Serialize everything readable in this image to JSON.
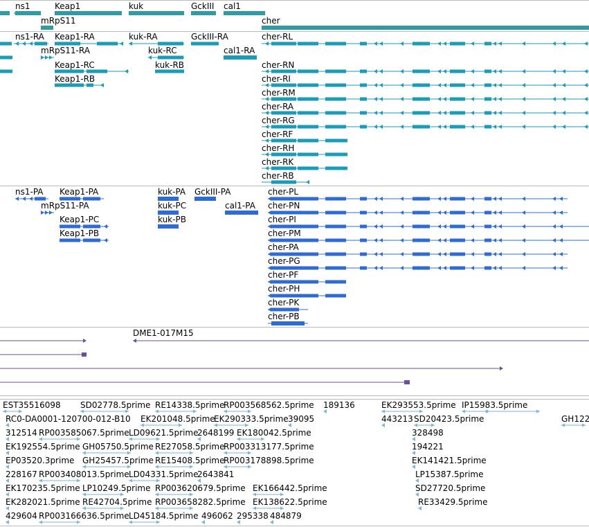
{
  "colors": {
    "gene": "#319ba3",
    "transcript": "#1a9bb8",
    "protein": "#2f6bd0",
    "clone": "#6a4fa0",
    "est": "#7ab6dc",
    "separator": "#bbbbbb"
  },
  "tracks": {
    "genes": {
      "labels": [
        "ns1",
        "Keap1",
        "kuk",
        "GckIII",
        "cal1",
        "mRpS11",
        "cher"
      ]
    },
    "transcripts": {
      "labels": [
        "ns1-RA",
        "Keap1-RA",
        "kuk-RA",
        "GckIII-RA",
        "cher-RL",
        "mRpS11-RA",
        "kuk-RC",
        "cal1-RA",
        "Keap1-RC",
        "kuk-RB",
        "cher-RN",
        "Keap1-RB",
        "cher-RI",
        "cher-RM",
        "cher-RA",
        "cher-RG",
        "cher-RF",
        "cher-RH",
        "cher-RK",
        "cher-RB"
      ]
    },
    "proteins": {
      "labels": [
        "ns1-PA",
        "Keap1-PA",
        "kuk-PA",
        "GckIII-PA",
        "cher-PL",
        "mRpS11-PA",
        "kuk-PC",
        "cal1-PA",
        "cher-PN",
        "Keap1-PC",
        "kuk-PB",
        "cher-PI",
        "Keap1-PB",
        "cher-PM",
        "cher-PA",
        "cher-PG",
        "cher-PF",
        "cher-PH",
        "cher-PK",
        "cher-PB"
      ]
    },
    "clones": {
      "labels": [
        "DME1-017M15"
      ]
    },
    "est": {
      "labels": [
        "EST35516098",
        "SD02778.5prime",
        "RE14338.5prime",
        "RP003568562.5prime",
        "189136",
        "EK293553.5prime",
        "IP15983.5prime",
        "RC0-DA0001-120700-012-B10",
        "EK201048.5prime",
        "EK290333.5prime",
        "39095",
        "443213",
        "SD20423.5prime",
        "GH122",
        "312514",
        "RP003585067.5prime",
        "LD09621.5prime",
        "2648199",
        "EK180042.5prime",
        "328498",
        "EK192554.5prime",
        "GH05750.5prime",
        "RE27058.5prime",
        "RP003313177.5prime",
        "194221",
        "EP03520.3prime",
        "GH25457.5prime",
        "RE15408.5prime",
        "RP003178898.5prime",
        "EK141421.5prime",
        "228167",
        "RP003408013.5prime",
        "LD04331.5prime",
        "2643841",
        "LP15387.5prime",
        "EK170235.5prime",
        "LP10249.5prime",
        "RP003620679.5prime",
        "EK166442.5prime",
        "SD27720.5prime",
        "EK282021.5prime",
        "RE42704.5prime",
        "RP003658282.5prime",
        "EK138622.5prime",
        "RE33429.5prime",
        "429604",
        "RP003166636.5prime",
        "LD45184.5prime",
        "496062",
        "295338",
        "484879"
      ]
    }
  }
}
